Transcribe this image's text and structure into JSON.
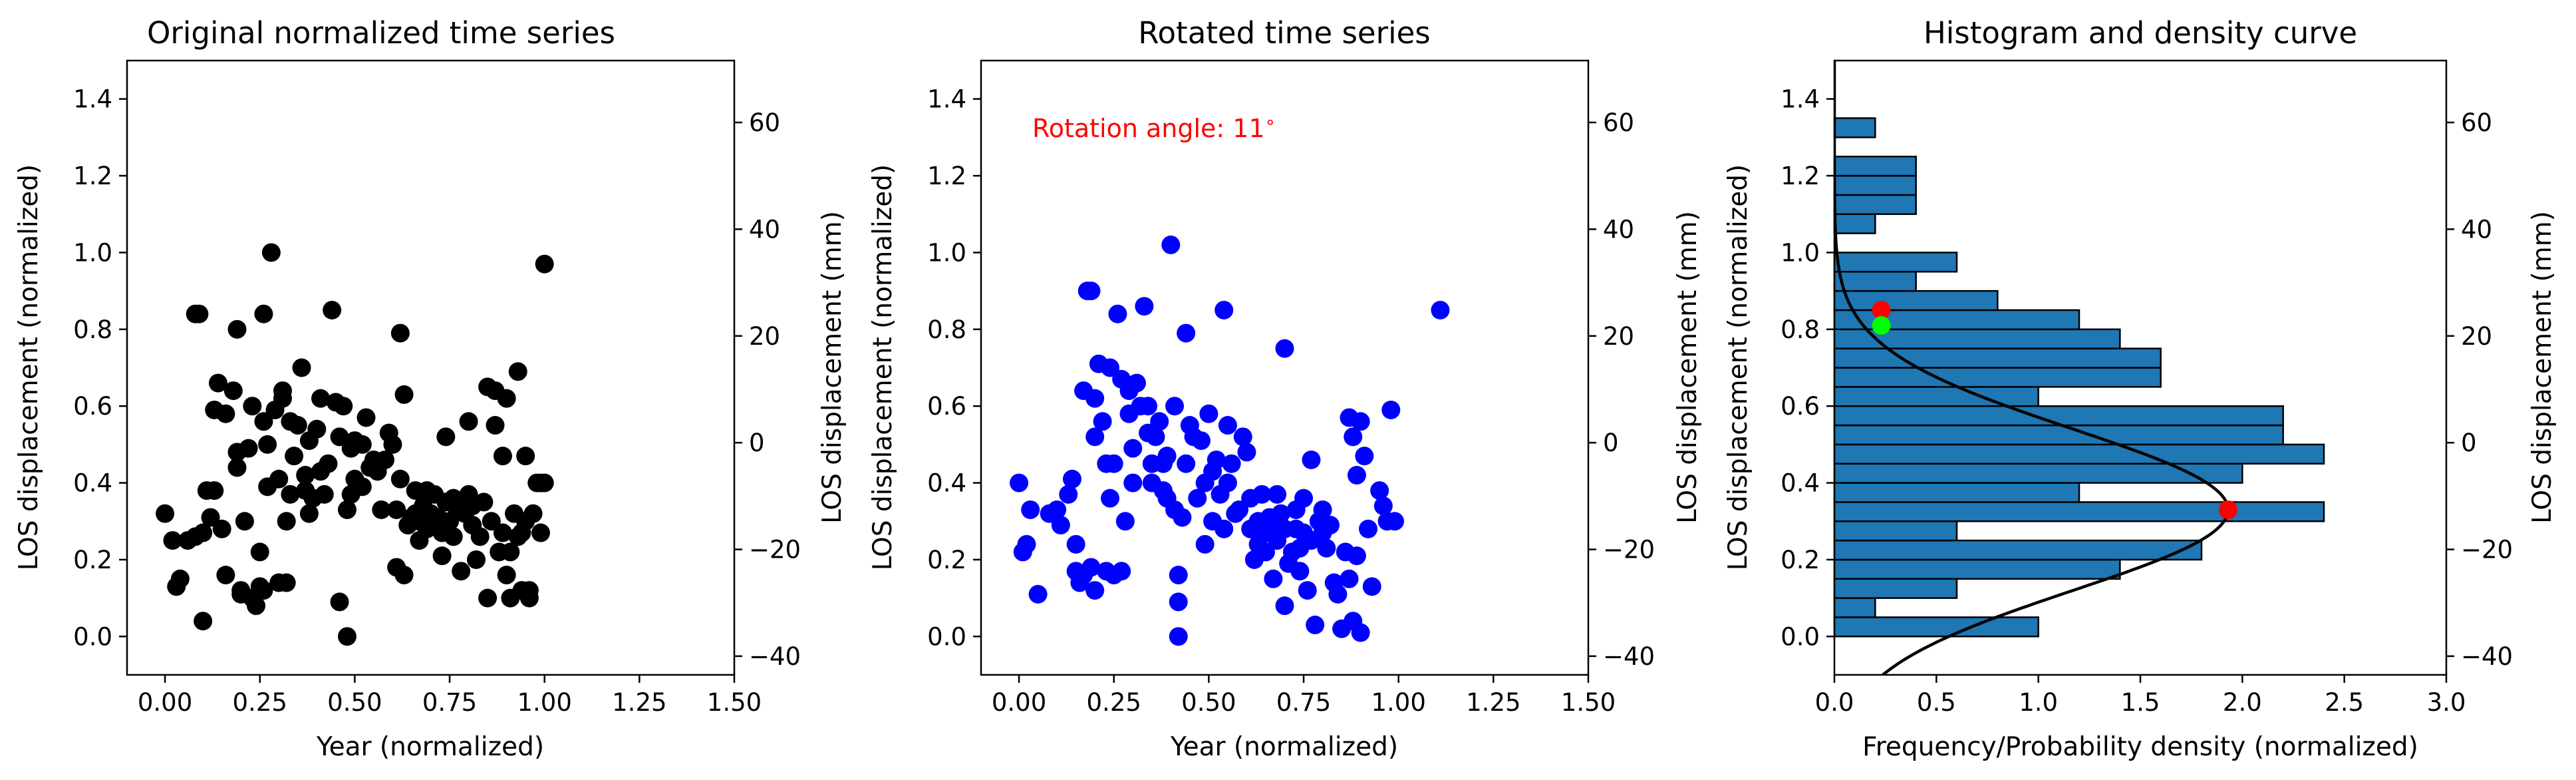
{
  "chart_data": [
    {
      "type": "scatter",
      "title": "Original normalized time series",
      "xlabel": "Year (normalized)",
      "ylabel": "LOS displacement (normalized)",
      "y2label": "LOS displacement (mm)",
      "xlim": [
        -0.1,
        1.5
      ],
      "ylim": [
        -0.1,
        1.5
      ],
      "y2lim": [
        -43.5,
        71.6
      ],
      "xticks": [
        "0.00",
        "0.25",
        "0.50",
        "0.75",
        "1.00",
        "1.25",
        "1.50"
      ],
      "yticks": [
        "0.0",
        "0.2",
        "0.4",
        "0.6",
        "0.8",
        "1.0",
        "1.2",
        "1.4"
      ],
      "y2ticks": [
        "−40",
        "−20",
        "0",
        "20",
        "40",
        "60"
      ],
      "marker_color": "#000000",
      "points": [
        [
          0.0,
          0.32
        ],
        [
          0.02,
          0.25
        ],
        [
          0.03,
          0.13
        ],
        [
          0.04,
          0.15
        ],
        [
          0.06,
          0.25
        ],
        [
          0.08,
          0.26
        ],
        [
          0.08,
          0.84
        ],
        [
          0.09,
          0.84
        ],
        [
          0.1,
          0.27
        ],
        [
          0.1,
          0.04
        ],
        [
          0.11,
          0.38
        ],
        [
          0.12,
          0.31
        ],
        [
          0.13,
          0.59
        ],
        [
          0.13,
          0.38
        ],
        [
          0.14,
          0.66
        ],
        [
          0.15,
          0.28
        ],
        [
          0.16,
          0.58
        ],
        [
          0.16,
          0.16
        ],
        [
          0.18,
          0.64
        ],
        [
          0.19,
          0.48
        ],
        [
          0.19,
          0.44
        ],
        [
          0.19,
          0.8
        ],
        [
          0.2,
          0.11
        ],
        [
          0.2,
          0.12
        ],
        [
          0.21,
          0.3
        ],
        [
          0.22,
          0.49
        ],
        [
          0.23,
          0.1
        ],
        [
          0.23,
          0.6
        ],
        [
          0.24,
          0.08
        ],
        [
          0.25,
          0.22
        ],
        [
          0.25,
          0.13
        ],
        [
          0.26,
          0.12
        ],
        [
          0.26,
          0.56
        ],
        [
          0.26,
          0.84
        ],
        [
          0.27,
          0.39
        ],
        [
          0.27,
          0.5
        ],
        [
          0.28,
          1.0
        ],
        [
          0.29,
          0.59
        ],
        [
          0.3,
          0.41
        ],
        [
          0.3,
          0.14
        ],
        [
          0.31,
          0.62
        ],
        [
          0.31,
          0.64
        ],
        [
          0.32,
          0.3
        ],
        [
          0.32,
          0.14
        ],
        [
          0.33,
          0.37
        ],
        [
          0.33,
          0.56
        ],
        [
          0.34,
          0.47
        ],
        [
          0.35,
          0.55
        ],
        [
          0.36,
          0.7
        ],
        [
          0.37,
          0.38
        ],
        [
          0.37,
          0.42
        ],
        [
          0.38,
          0.51
        ],
        [
          0.38,
          0.32
        ],
        [
          0.39,
          0.36
        ],
        [
          0.4,
          0.54
        ],
        [
          0.41,
          0.43
        ],
        [
          0.41,
          0.62
        ],
        [
          0.42,
          0.37
        ],
        [
          0.43,
          0.45
        ],
        [
          0.44,
          0.85
        ],
        [
          0.45,
          0.61
        ],
        [
          0.46,
          0.52
        ],
        [
          0.46,
          0.09
        ],
        [
          0.47,
          0.6
        ],
        [
          0.48,
          0.0
        ],
        [
          0.48,
          0.33
        ],
        [
          0.49,
          0.49
        ],
        [
          0.49,
          0.37
        ],
        [
          0.5,
          0.51
        ],
        [
          0.5,
          0.41
        ],
        [
          0.52,
          0.5
        ],
        [
          0.52,
          0.39
        ],
        [
          0.53,
          0.57
        ],
        [
          0.54,
          0.44
        ],
        [
          0.55,
          0.46
        ],
        [
          0.56,
          0.43
        ],
        [
          0.57,
          0.33
        ],
        [
          0.58,
          0.46
        ],
        [
          0.59,
          0.53
        ],
        [
          0.6,
          0.5
        ],
        [
          0.61,
          0.33
        ],
        [
          0.61,
          0.18
        ],
        [
          0.62,
          0.41
        ],
        [
          0.62,
          0.79
        ],
        [
          0.63,
          0.16
        ],
        [
          0.63,
          0.63
        ],
        [
          0.64,
          0.29
        ],
        [
          0.65,
          0.31
        ],
        [
          0.66,
          0.32
        ],
        [
          0.66,
          0.38
        ],
        [
          0.67,
          0.3
        ],
        [
          0.67,
          0.25
        ],
        [
          0.68,
          0.34
        ],
        [
          0.69,
          0.28
        ],
        [
          0.69,
          0.38
        ],
        [
          0.7,
          0.32
        ],
        [
          0.71,
          0.37
        ],
        [
          0.71,
          0.29
        ],
        [
          0.72,
          0.31
        ],
        [
          0.73,
          0.27
        ],
        [
          0.73,
          0.21
        ],
        [
          0.74,
          0.52
        ],
        [
          0.74,
          0.35
        ],
        [
          0.75,
          0.3
        ],
        [
          0.76,
          0.36
        ],
        [
          0.76,
          0.26
        ],
        [
          0.77,
          0.33
        ],
        [
          0.78,
          0.34
        ],
        [
          0.78,
          0.17
        ],
        [
          0.79,
          0.32
        ],
        [
          0.8,
          0.37
        ],
        [
          0.8,
          0.56
        ],
        [
          0.81,
          0.34
        ],
        [
          0.81,
          0.29
        ],
        [
          0.82,
          0.2
        ],
        [
          0.83,
          0.26
        ],
        [
          0.84,
          0.35
        ],
        [
          0.85,
          0.1
        ],
        [
          0.85,
          0.65
        ],
        [
          0.86,
          0.3
        ],
        [
          0.87,
          0.64
        ],
        [
          0.87,
          0.55
        ],
        [
          0.88,
          0.22
        ],
        [
          0.89,
          0.27
        ],
        [
          0.89,
          0.47
        ],
        [
          0.9,
          0.62
        ],
        [
          0.9,
          0.16
        ],
        [
          0.91,
          0.1
        ],
        [
          0.91,
          0.22
        ],
        [
          0.92,
          0.32
        ],
        [
          0.93,
          0.69
        ],
        [
          0.93,
          0.26
        ],
        [
          0.94,
          0.12
        ],
        [
          0.94,
          0.27
        ],
        [
          0.95,
          0.47
        ],
        [
          0.95,
          0.3
        ],
        [
          0.96,
          0.12
        ],
        [
          0.96,
          0.1
        ],
        [
          0.97,
          0.32
        ],
        [
          0.98,
          0.4
        ],
        [
          0.99,
          0.27
        ],
        [
          0.99,
          0.4
        ],
        [
          1.0,
          0.97
        ],
        [
          1.0,
          0.4
        ]
      ]
    },
    {
      "type": "scatter",
      "title": "Rotated time series",
      "xlabel": "Year (normalized)",
      "ylabel": "LOS displacement (normalized)",
      "y2label": "LOS displacement (mm)",
      "annotation": "Rotation angle: 11$^\\circ$",
      "annotation_text": "Rotation angle: 11",
      "annotation_sup": "∘",
      "annotation_color": "#ff0000",
      "xlim": [
        -0.1,
        1.5
      ],
      "ylim": [
        -0.1,
        1.5
      ],
      "y2lim": [
        -43.5,
        71.6
      ],
      "xticks": [
        "0.00",
        "0.25",
        "0.50",
        "0.75",
        "1.00",
        "1.25",
        "1.50"
      ],
      "yticks": [
        "0.0",
        "0.2",
        "0.4",
        "0.6",
        "0.8",
        "1.0",
        "1.2",
        "1.4"
      ],
      "y2ticks": [
        "−40",
        "−20",
        "0",
        "20",
        "40",
        "60"
      ],
      "marker_color": "#0000ff",
      "points": [
        [
          0.0,
          0.4
        ],
        [
          0.01,
          0.22
        ],
        [
          0.02,
          0.24
        ],
        [
          0.03,
          0.33
        ],
        [
          0.05,
          0.11
        ],
        [
          0.08,
          0.32
        ],
        [
          0.1,
          0.33
        ],
        [
          0.11,
          0.29
        ],
        [
          0.13,
          0.37
        ],
        [
          0.14,
          0.41
        ],
        [
          0.15,
          0.24
        ],
        [
          0.15,
          0.17
        ],
        [
          0.16,
          0.14
        ],
        [
          0.17,
          0.64
        ],
        [
          0.17,
          0.16
        ],
        [
          0.18,
          0.9
        ],
        [
          0.19,
          0.9
        ],
        [
          0.19,
          0.18
        ],
        [
          0.2,
          0.62
        ],
        [
          0.2,
          0.52
        ],
        [
          0.2,
          0.12
        ],
        [
          0.21,
          0.71
        ],
        [
          0.22,
          0.56
        ],
        [
          0.23,
          0.45
        ],
        [
          0.23,
          0.17
        ],
        [
          0.24,
          0.7
        ],
        [
          0.24,
          0.36
        ],
        [
          0.25,
          0.45
        ],
        [
          0.25,
          0.16
        ],
        [
          0.26,
          0.84
        ],
        [
          0.27,
          0.17
        ],
        [
          0.27,
          0.67
        ],
        [
          0.28,
          0.3
        ],
        [
          0.29,
          0.64
        ],
        [
          0.29,
          0.58
        ],
        [
          0.3,
          0.4
        ],
        [
          0.3,
          0.49
        ],
        [
          0.31,
          0.66
        ],
        [
          0.32,
          0.6
        ],
        [
          0.33,
          0.86
        ],
        [
          0.34,
          0.53
        ],
        [
          0.34,
          0.6
        ],
        [
          0.35,
          0.45
        ],
        [
          0.35,
          0.4
        ],
        [
          0.36,
          0.52
        ],
        [
          0.37,
          0.56
        ],
        [
          0.38,
          0.45
        ],
        [
          0.38,
          0.38
        ],
        [
          0.39,
          0.36
        ],
        [
          0.39,
          0.47
        ],
        [
          0.4,
          1.02
        ],
        [
          0.41,
          0.33
        ],
        [
          0.41,
          0.6
        ],
        [
          0.42,
          0.0
        ],
        [
          0.42,
          0.09
        ],
        [
          0.42,
          0.16
        ],
        [
          0.43,
          0.31
        ],
        [
          0.44,
          0.45
        ],
        [
          0.44,
          0.79
        ],
        [
          0.45,
          0.55
        ],
        [
          0.46,
          0.52
        ],
        [
          0.47,
          0.36
        ],
        [
          0.48,
          0.51
        ],
        [
          0.49,
          0.24
        ],
        [
          0.49,
          0.4
        ],
        [
          0.5,
          0.58
        ],
        [
          0.51,
          0.43
        ],
        [
          0.51,
          0.3
        ],
        [
          0.52,
          0.46
        ],
        [
          0.53,
          0.37
        ],
        [
          0.54,
          0.85
        ],
        [
          0.54,
          0.28
        ],
        [
          0.55,
          0.55
        ],
        [
          0.55,
          0.4
        ],
        [
          0.56,
          0.45
        ],
        [
          0.57,
          0.32
        ],
        [
          0.58,
          0.33
        ],
        [
          0.59,
          0.52
        ],
        [
          0.6,
          0.48
        ],
        [
          0.61,
          0.28
        ],
        [
          0.61,
          0.36
        ],
        [
          0.62,
          0.2
        ],
        [
          0.63,
          0.3
        ],
        [
          0.63,
          0.24
        ],
        [
          0.64,
          0.37
        ],
        [
          0.65,
          0.22
        ],
        [
          0.65,
          0.27
        ],
        [
          0.66,
          0.31
        ],
        [
          0.67,
          0.29
        ],
        [
          0.67,
          0.15
        ],
        [
          0.68,
          0.37
        ],
        [
          0.68,
          0.25
        ],
        [
          0.69,
          0.32
        ],
        [
          0.7,
          0.75
        ],
        [
          0.7,
          0.28
        ],
        [
          0.7,
          0.08
        ],
        [
          0.71,
          0.19
        ],
        [
          0.72,
          0.22
        ],
        [
          0.73,
          0.28
        ],
        [
          0.73,
          0.33
        ],
        [
          0.74,
          0.23
        ],
        [
          0.74,
          0.17
        ],
        [
          0.75,
          0.27
        ],
        [
          0.75,
          0.36
        ],
        [
          0.76,
          0.12
        ],
        [
          0.77,
          0.25
        ],
        [
          0.77,
          0.46
        ],
        [
          0.78,
          0.03
        ],
        [
          0.79,
          0.3
        ],
        [
          0.8,
          0.27
        ],
        [
          0.8,
          0.33
        ],
        [
          0.81,
          0.23
        ],
        [
          0.82,
          0.29
        ],
        [
          0.83,
          0.14
        ],
        [
          0.84,
          0.11
        ],
        [
          0.85,
          0.02
        ],
        [
          0.86,
          0.22
        ],
        [
          0.87,
          0.57
        ],
        [
          0.87,
          0.15
        ],
        [
          0.88,
          0.52
        ],
        [
          0.88,
          0.04
        ],
        [
          0.89,
          0.21
        ],
        [
          0.89,
          0.42
        ],
        [
          0.9,
          0.01
        ],
        [
          0.9,
          0.56
        ],
        [
          0.91,
          0.47
        ],
        [
          0.92,
          0.28
        ],
        [
          0.93,
          0.13
        ],
        [
          0.95,
          0.38
        ],
        [
          0.96,
          0.34
        ],
        [
          0.97,
          0.3
        ],
        [
          0.98,
          0.59
        ],
        [
          0.99,
          0.3
        ],
        [
          1.11,
          0.85
        ]
      ]
    },
    {
      "type": "bar",
      "orientation": "horizontal",
      "title": "Histogram and density curve",
      "xlabel": "Frequency/Probability density (normalized)",
      "ylabel": "LOS displacement (normalized)",
      "y2label": "LOS displacement (mm)",
      "xlim": [
        0.0,
        3.0
      ],
      "ylim": [
        -0.1,
        1.5
      ],
      "y2lim": [
        -43.5,
        71.6
      ],
      "xticks": [
        "0.0",
        "0.5",
        "1.0",
        "1.5",
        "2.0",
        "2.5",
        "3.0"
      ],
      "yticks": [
        "0.0",
        "0.2",
        "0.4",
        "0.6",
        "0.8",
        "1.0",
        "1.2",
        "1.4"
      ],
      "y2ticks": [
        "−40",
        "−20",
        "0",
        "20",
        "40",
        "60"
      ],
      "bar_color": "#1f77b4",
      "bin_width": 0.05,
      "bins": [
        [
          -0.1,
          0.0
        ],
        [
          -0.05,
          0.0
        ],
        [
          0.0,
          1.0
        ],
        [
          0.05,
          0.2
        ],
        [
          0.1,
          0.6
        ],
        [
          0.15,
          1.4
        ],
        [
          0.2,
          1.8
        ],
        [
          0.25,
          0.6
        ],
        [
          0.3,
          2.4
        ],
        [
          0.35,
          1.2
        ],
        [
          0.4,
          2.0
        ],
        [
          0.45,
          2.4
        ],
        [
          0.5,
          2.2
        ],
        [
          0.55,
          2.2
        ],
        [
          0.6,
          1.0
        ],
        [
          0.65,
          1.6
        ],
        [
          0.7,
          1.6
        ],
        [
          0.75,
          1.4
        ],
        [
          0.8,
          1.2
        ],
        [
          0.85,
          0.8
        ],
        [
          0.9,
          0.4
        ],
        [
          0.95,
          0.6
        ],
        [
          1.0,
          0.0
        ],
        [
          1.05,
          0.2
        ],
        [
          1.1,
          0.4
        ],
        [
          1.15,
          0.4
        ],
        [
          1.2,
          0.4
        ],
        [
          1.25,
          0.0
        ],
        [
          1.3,
          0.2
        ]
      ],
      "density_curve": {
        "mean": 0.33,
        "std": 0.21,
        "peak": 1.93,
        "color": "#000000"
      },
      "markers": [
        {
          "x": 1.93,
          "y": 0.33,
          "color": "#ff0000"
        },
        {
          "x": 0.23,
          "y": 0.85,
          "color": "#ff0000"
        },
        {
          "x": 0.23,
          "y": 0.81,
          "color": "#00ff00"
        }
      ]
    }
  ]
}
